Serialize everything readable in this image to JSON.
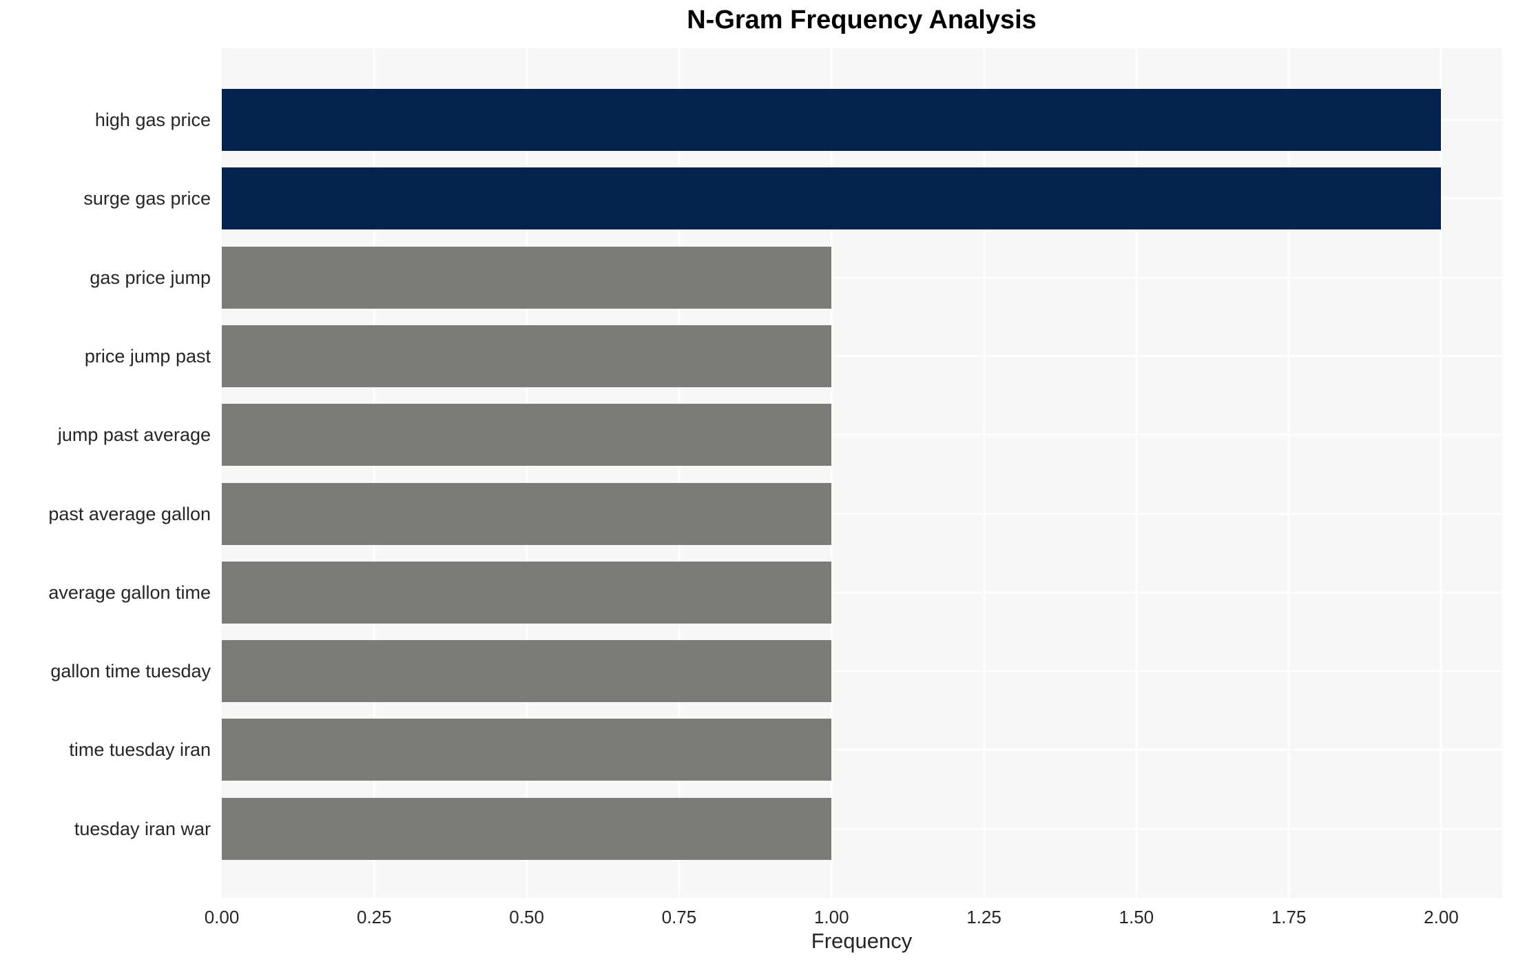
{
  "chart_data": {
    "type": "bar",
    "orientation": "horizontal",
    "title": "N-Gram Frequency Analysis",
    "xlabel": "Frequency",
    "ylabel": "",
    "categories": [
      "high gas price",
      "surge gas price",
      "gas price jump",
      "price jump past",
      "jump past average",
      "past average gallon",
      "average gallon time",
      "gallon time tuesday",
      "time tuesday iran",
      "tuesday iran war"
    ],
    "values": [
      2,
      2,
      1,
      1,
      1,
      1,
      1,
      1,
      1,
      1
    ],
    "bar_colors": [
      "#01234d",
      "#01234d",
      "#7b7b78",
      "#7b7b78",
      "#7b7b78",
      "#7b7b78",
      "#7b7b78",
      "#7b7b78",
      "#7b7b78",
      "#7b7b78"
    ],
    "xlim": [
      0,
      2.1
    ],
    "xtick_values": [
      0.0,
      0.25,
      0.5,
      0.75,
      1.0,
      1.25,
      1.5,
      1.75,
      2.0
    ],
    "xtick_labels": [
      "0.00",
      "0.25",
      "0.50",
      "0.75",
      "1.00",
      "1.25",
      "1.50",
      "1.75",
      "2.00"
    ],
    "grid": true,
    "legend": null,
    "colors": {
      "highlight_bar": "#01234d",
      "default_bar": "#7b7b78",
      "plot_background": "#f7f7f7",
      "gridline": "#ffffff",
      "text": "#262626",
      "title_text": "#000000"
    }
  }
}
